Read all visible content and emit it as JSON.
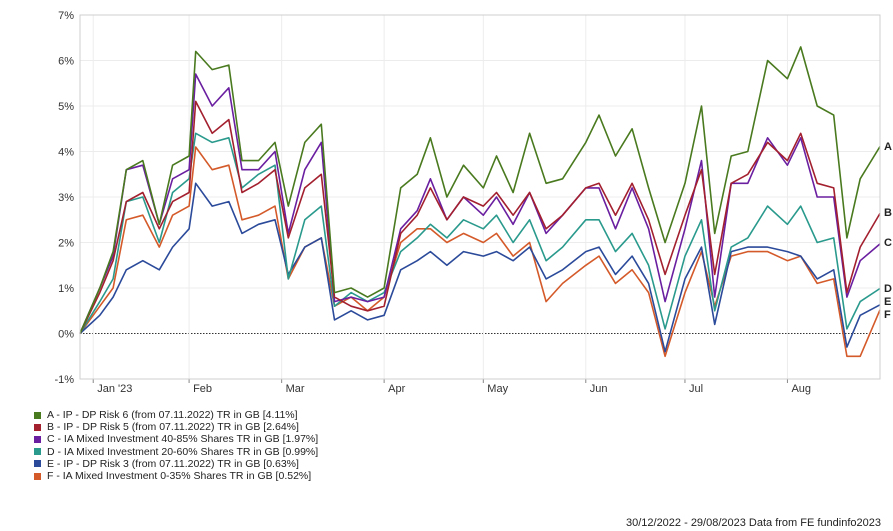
{
  "chart_data": {
    "type": "line",
    "title": "",
    "xlabel": "",
    "ylabel": "",
    "ylim": [
      -1,
      7
    ],
    "yticks": [
      "-1%",
      "0%",
      "1%",
      "2%",
      "3%",
      "4%",
      "5%",
      "6%",
      "7%"
    ],
    "xticks": [
      {
        "label": "Jan '23",
        "date": "2023-01-03"
      },
      {
        "label": "Feb",
        "date": "2023-02-01"
      },
      {
        "label": "Mar",
        "date": "2023-03-01"
      },
      {
        "label": "Apr",
        "date": "2023-04-01"
      },
      {
        "label": "May",
        "date": "2023-05-01"
      },
      {
        "label": "Jun",
        "date": "2023-06-01"
      },
      {
        "label": "Jul",
        "date": "2023-07-01"
      },
      {
        "label": "Aug",
        "date": "2023-08-01"
      }
    ],
    "x_range": [
      "2022-12-30",
      "2023-08-29"
    ],
    "zero_line": "dotted",
    "legend_position": "bottom-left",
    "x": [
      "2022-12-30",
      "2023-01-05",
      "2023-01-09",
      "2023-01-13",
      "2023-01-18",
      "2023-01-23",
      "2023-01-27",
      "2023-02-01",
      "2023-02-03",
      "2023-02-08",
      "2023-02-13",
      "2023-02-17",
      "2023-02-22",
      "2023-02-27",
      "2023-03-03",
      "2023-03-08",
      "2023-03-13",
      "2023-03-17",
      "2023-03-22",
      "2023-03-27",
      "2023-04-01",
      "2023-04-06",
      "2023-04-11",
      "2023-04-15",
      "2023-04-20",
      "2023-04-25",
      "2023-05-01",
      "2023-05-05",
      "2023-05-10",
      "2023-05-15",
      "2023-05-20",
      "2023-05-25",
      "2023-06-01",
      "2023-06-05",
      "2023-06-10",
      "2023-06-15",
      "2023-06-20",
      "2023-06-25",
      "2023-07-01",
      "2023-07-06",
      "2023-07-10",
      "2023-07-15",
      "2023-07-20",
      "2023-07-26",
      "2023-08-01",
      "2023-08-05",
      "2023-08-10",
      "2023-08-15",
      "2023-08-19",
      "2023-08-23",
      "2023-08-29"
    ],
    "series": [
      {
        "name": "A",
        "color": "#4a7a1f",
        "end_label": "A",
        "values": [
          0,
          1.0,
          1.8,
          3.6,
          3.8,
          2.4,
          3.7,
          3.9,
          6.2,
          5.8,
          5.9,
          3.8,
          3.8,
          4.2,
          2.8,
          4.2,
          4.6,
          0.9,
          1.0,
          0.8,
          1.0,
          3.2,
          3.5,
          4.3,
          3.0,
          3.7,
          3.2,
          3.9,
          3.1,
          4.4,
          3.3,
          3.4,
          4.2,
          4.8,
          3.9,
          4.5,
          3.2,
          2.0,
          3.3,
          5.0,
          2.2,
          3.9,
          4.0,
          6.0,
          5.6,
          6.3,
          5.0,
          4.8,
          2.1,
          3.4,
          4.11
        ]
      },
      {
        "name": "B",
        "color": "#a3202f",
        "end_label": "B",
        "values": [
          0,
          0.9,
          1.6,
          2.9,
          3.1,
          2.3,
          2.9,
          3.1,
          5.1,
          4.4,
          4.7,
          3.1,
          3.3,
          3.6,
          2.1,
          3.2,
          3.5,
          0.8,
          0.6,
          0.5,
          0.6,
          2.2,
          2.6,
          3.2,
          2.5,
          3.0,
          2.8,
          3.1,
          2.6,
          3.1,
          2.3,
          2.6,
          3.2,
          3.3,
          2.6,
          3.3,
          2.5,
          1.3,
          2.6,
          3.6,
          1.3,
          3.3,
          3.5,
          4.2,
          3.8,
          4.4,
          3.3,
          3.2,
          0.9,
          1.9,
          2.64
        ]
      },
      {
        "name": "C",
        "color": "#6a1fa0",
        "end_label": "C",
        "values": [
          0,
          1.0,
          1.7,
          3.6,
          3.7,
          2.4,
          3.4,
          3.6,
          5.7,
          5.0,
          5.4,
          3.6,
          3.6,
          4.0,
          2.2,
          3.6,
          4.2,
          0.7,
          0.8,
          0.7,
          0.8,
          2.3,
          2.7,
          3.4,
          2.5,
          3.0,
          2.6,
          3.0,
          2.4,
          3.1,
          2.2,
          2.6,
          3.2,
          3.2,
          2.3,
          3.2,
          2.3,
          0.7,
          2.3,
          3.8,
          0.8,
          3.3,
          3.3,
          4.3,
          3.7,
          4.3,
          3.0,
          3.0,
          0.8,
          1.6,
          1.97
        ]
      },
      {
        "name": "D",
        "color": "#2a9a8d",
        "end_label": "D",
        "values": [
          0,
          0.7,
          1.2,
          2.9,
          3.0,
          2.0,
          3.1,
          3.4,
          4.4,
          4.2,
          4.3,
          3.2,
          3.5,
          3.7,
          1.2,
          2.5,
          2.8,
          0.6,
          0.9,
          0.7,
          0.9,
          1.8,
          2.1,
          2.4,
          2.1,
          2.5,
          2.3,
          2.6,
          2.0,
          2.5,
          1.6,
          1.9,
          2.5,
          2.5,
          1.8,
          2.2,
          1.5,
          0.1,
          1.7,
          2.5,
          0.5,
          1.9,
          2.1,
          2.8,
          2.4,
          2.8,
          2.0,
          2.1,
          0.1,
          0.7,
          0.99
        ]
      },
      {
        "name": "E",
        "color": "#2b4a9a",
        "end_label": "E",
        "values": [
          0,
          0.4,
          0.8,
          1.4,
          1.6,
          1.4,
          1.9,
          2.3,
          3.3,
          2.8,
          2.9,
          2.2,
          2.4,
          2.5,
          1.3,
          1.9,
          2.1,
          0.3,
          0.5,
          0.3,
          0.4,
          1.4,
          1.6,
          1.8,
          1.5,
          1.8,
          1.7,
          1.8,
          1.6,
          1.9,
          1.2,
          1.4,
          1.8,
          1.9,
          1.3,
          1.7,
          1.1,
          -0.4,
          1.2,
          1.9,
          0.2,
          1.8,
          1.9,
          1.9,
          1.8,
          1.7,
          1.2,
          1.4,
          -0.3,
          0.4,
          0.63
        ]
      },
      {
        "name": "F",
        "color": "#d45a2a",
        "end_label": "F",
        "values": [
          0,
          0.6,
          1.0,
          2.5,
          2.6,
          1.9,
          2.6,
          2.8,
          4.1,
          3.6,
          3.7,
          2.5,
          2.6,
          2.8,
          1.2,
          1.9,
          2.1,
          0.6,
          0.8,
          0.5,
          0.8,
          2.0,
          2.3,
          2.3,
          2.0,
          2.2,
          2.0,
          2.2,
          1.7,
          2.0,
          0.7,
          1.1,
          1.5,
          1.7,
          1.1,
          1.4,
          0.9,
          -0.5,
          0.9,
          1.8,
          0.6,
          1.7,
          1.8,
          1.8,
          1.6,
          1.7,
          1.1,
          1.2,
          -0.5,
          -0.5,
          0.52
        ]
      }
    ]
  },
  "legend": [
    {
      "text": "A - IP - DP Risk 6 (from 07.11.2022) TR in GB [4.11%]",
      "color": "#4a7a1f"
    },
    {
      "text": "B - IP - DP Risk 5 (from 07.11.2022) TR in GB [2.64%]",
      "color": "#a3202f"
    },
    {
      "text": "C - IA Mixed Investment 40-85% Shares TR in GB [1.97%]",
      "color": "#6a1fa0"
    },
    {
      "text": "D - IA Mixed Investment 20-60% Shares TR in GB [0.99%]",
      "color": "#2a9a8d"
    },
    {
      "text": "E - IP - DP Risk 3 (from 07.11.2022) TR in GB [0.63%]",
      "color": "#2b4a9a"
    },
    {
      "text": "F - IA Mixed Investment 0-35% Shares TR in GB [0.52%]",
      "color": "#d45a2a"
    }
  ],
  "footer": "30/12/2022 - 29/08/2023 Data from FE fundinfo2023"
}
